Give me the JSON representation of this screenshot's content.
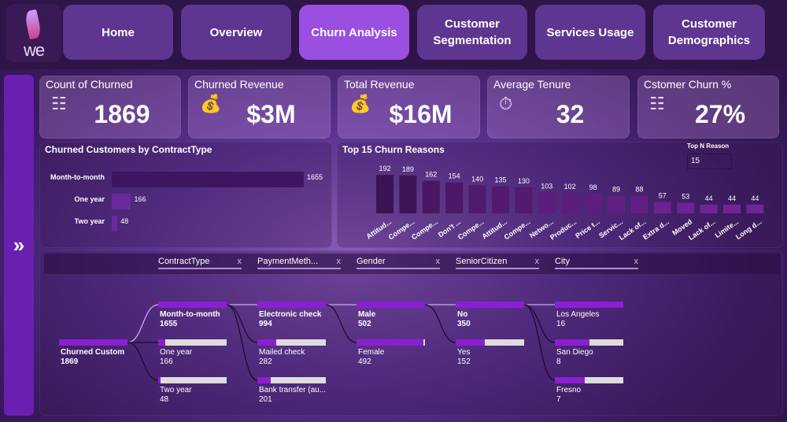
{
  "logo": "we",
  "nav": [
    {
      "label": "Home"
    },
    {
      "label": "Overview"
    },
    {
      "label": "Churn Analysis",
      "active": true
    },
    {
      "label": "Customer Segmentation"
    },
    {
      "label": "Services Usage"
    },
    {
      "label": "Customer Demographics"
    }
  ],
  "sidebar": {
    "icon": "»"
  },
  "kpis": [
    {
      "title": "Count of Churned",
      "value": "1869",
      "icon": "people-chart-icon"
    },
    {
      "title": "Churned Revenue",
      "value": "$3M",
      "icon": "money-bag-icon"
    },
    {
      "title": "Total Revenue",
      "value": "$16M",
      "icon": "money-bag-icon"
    },
    {
      "title": "Average Tenure",
      "value": "32",
      "icon": "stopwatch-icon"
    },
    {
      "title": "Cstomer Churn %",
      "value": "27%",
      "icon": "people-chart-icon"
    }
  ],
  "chart_data": [
    {
      "type": "bar",
      "orientation": "horizontal",
      "title": "Churned Customers by ContractType",
      "categories": [
        "Month-to-month",
        "One year",
        "Two year"
      ],
      "values": [
        1655,
        166,
        48
      ]
    },
    {
      "type": "bar",
      "title": "Top 15 Churn Reasons",
      "categories": [
        "Attitud...",
        "Compe...",
        "Compe...",
        "Don't ...",
        "Compe...",
        "Attitud...",
        "Compe...",
        "Netwo...",
        "Produc...",
        "Price t...",
        "Servic...",
        "Lack of...",
        "Extra d...",
        "Moved",
        "Lack of...",
        "Limite...",
        "Long d..."
      ],
      "values": [
        192,
        189,
        162,
        154,
        140,
        135,
        130,
        103,
        102,
        98,
        89,
        88,
        57,
        53,
        44,
        44,
        44
      ]
    }
  ],
  "topn": {
    "label": "Top N Reason",
    "value": "15"
  },
  "decomp": {
    "columns": [
      "ContractType",
      "PaymentMeth...",
      "Gender",
      "SeniorCitizen",
      "City"
    ],
    "close": "x",
    "root": {
      "label": "Churned Custom",
      "value": "1869"
    },
    "levels": [
      [
        {
          "label": "Month-to-month",
          "value": "1655",
          "frac": 1,
          "bold": true
        },
        {
          "label": "One year",
          "value": "166",
          "frac": 0.1
        },
        {
          "label": "Two year",
          "value": "48",
          "frac": 0.03
        }
      ],
      [
        {
          "label": "Electronic check",
          "value": "994",
          "frac": 1,
          "bold": true
        },
        {
          "label": "Mailed check",
          "value": "282",
          "frac": 0.28
        },
        {
          "label": "Bank transfer (au...",
          "value": "201",
          "frac": 0.2
        }
      ],
      [
        {
          "label": "Male",
          "value": "502",
          "frac": 1,
          "bold": true
        },
        {
          "label": "Female",
          "value": "492",
          "frac": 0.98
        }
      ],
      [
        {
          "label": "No",
          "value": "350",
          "frac": 1,
          "bold": true
        },
        {
          "label": "Yes",
          "value": "152",
          "frac": 0.43
        }
      ],
      [
        {
          "label": "Los Angeles",
          "value": "16",
          "frac": 1
        },
        {
          "label": "San Diego",
          "value": "8",
          "frac": 0.5
        },
        {
          "label": "Fresno",
          "value": "7",
          "frac": 0.44
        }
      ]
    ]
  }
}
